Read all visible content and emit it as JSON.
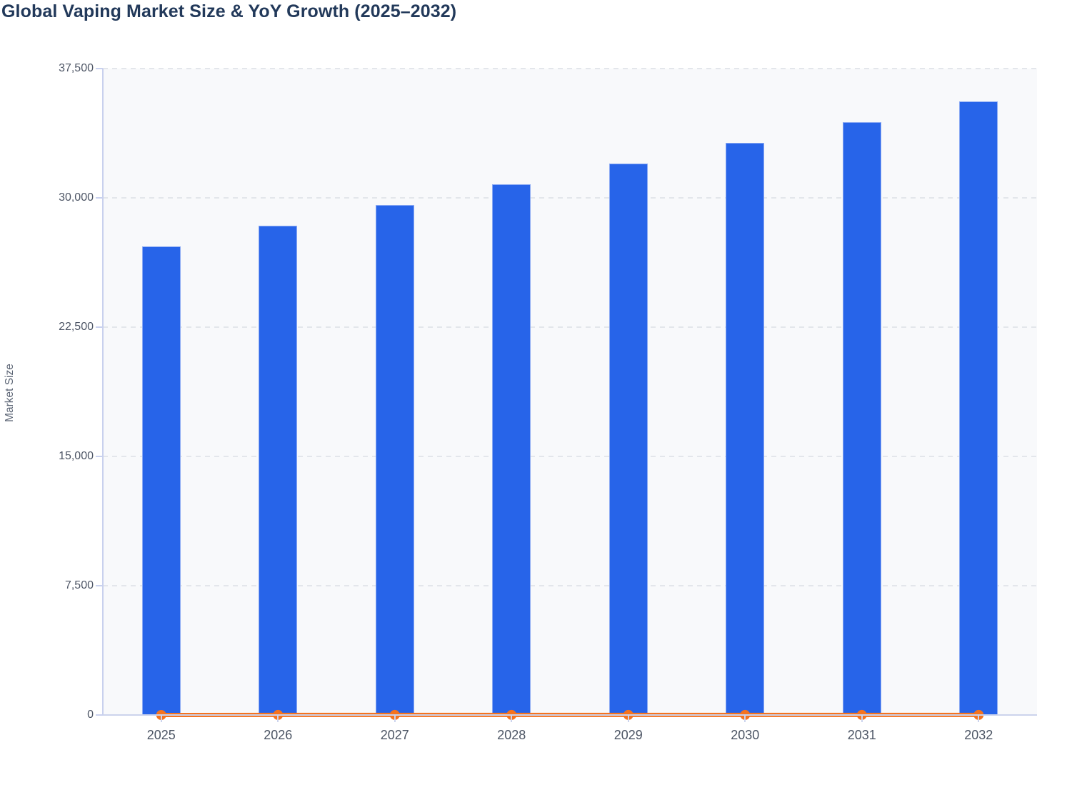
{
  "chart_data": {
    "type": "bar+line",
    "title": "Global Vaping Market Size & YoY Growth (2025–2032)",
    "xlabel": "",
    "ylabel": "Market Size",
    "categories": [
      "2025",
      "2026",
      "2027",
      "2028",
      "2029",
      "2030",
      "2031",
      "2032"
    ],
    "series": [
      {
        "name": "Market Size",
        "type": "bar",
        "color": "#2764e9",
        "values": [
          27200,
          28400,
          29600,
          30800,
          32000,
          33200,
          34400,
          35600
        ]
      },
      {
        "name": "YoY Growth",
        "type": "line",
        "color": "#f5731f",
        "values": [
          0,
          4.4,
          4.2,
          4.1,
          3.9,
          3.8,
          3.6,
          3.5
        ],
        "note": "line renders flat at ~0 against the left Market Size axis, with a circular marker at every year"
      }
    ],
    "ylim": [
      0,
      37500
    ],
    "yticks": [
      0,
      7500,
      15000,
      22500,
      30000,
      37500
    ],
    "ytick_labels": [
      "0",
      "7,500",
      "15,000",
      "22,500",
      "30,000",
      "37,500"
    ],
    "grid": "horizontal-dashed",
    "legend": "none"
  },
  "colors": {
    "bar": "#2764e9",
    "bar_edge": "#acc0f5",
    "line": "#f5731f",
    "title_text": "#22395a",
    "tick_text": "#4d5565",
    "axis_title_text": "#5c6575",
    "axis_line": "#c9d1ee",
    "gridline": "#e3e6eb",
    "plot_background": "#f8f9fb",
    "page_background": "#ffffff"
  }
}
